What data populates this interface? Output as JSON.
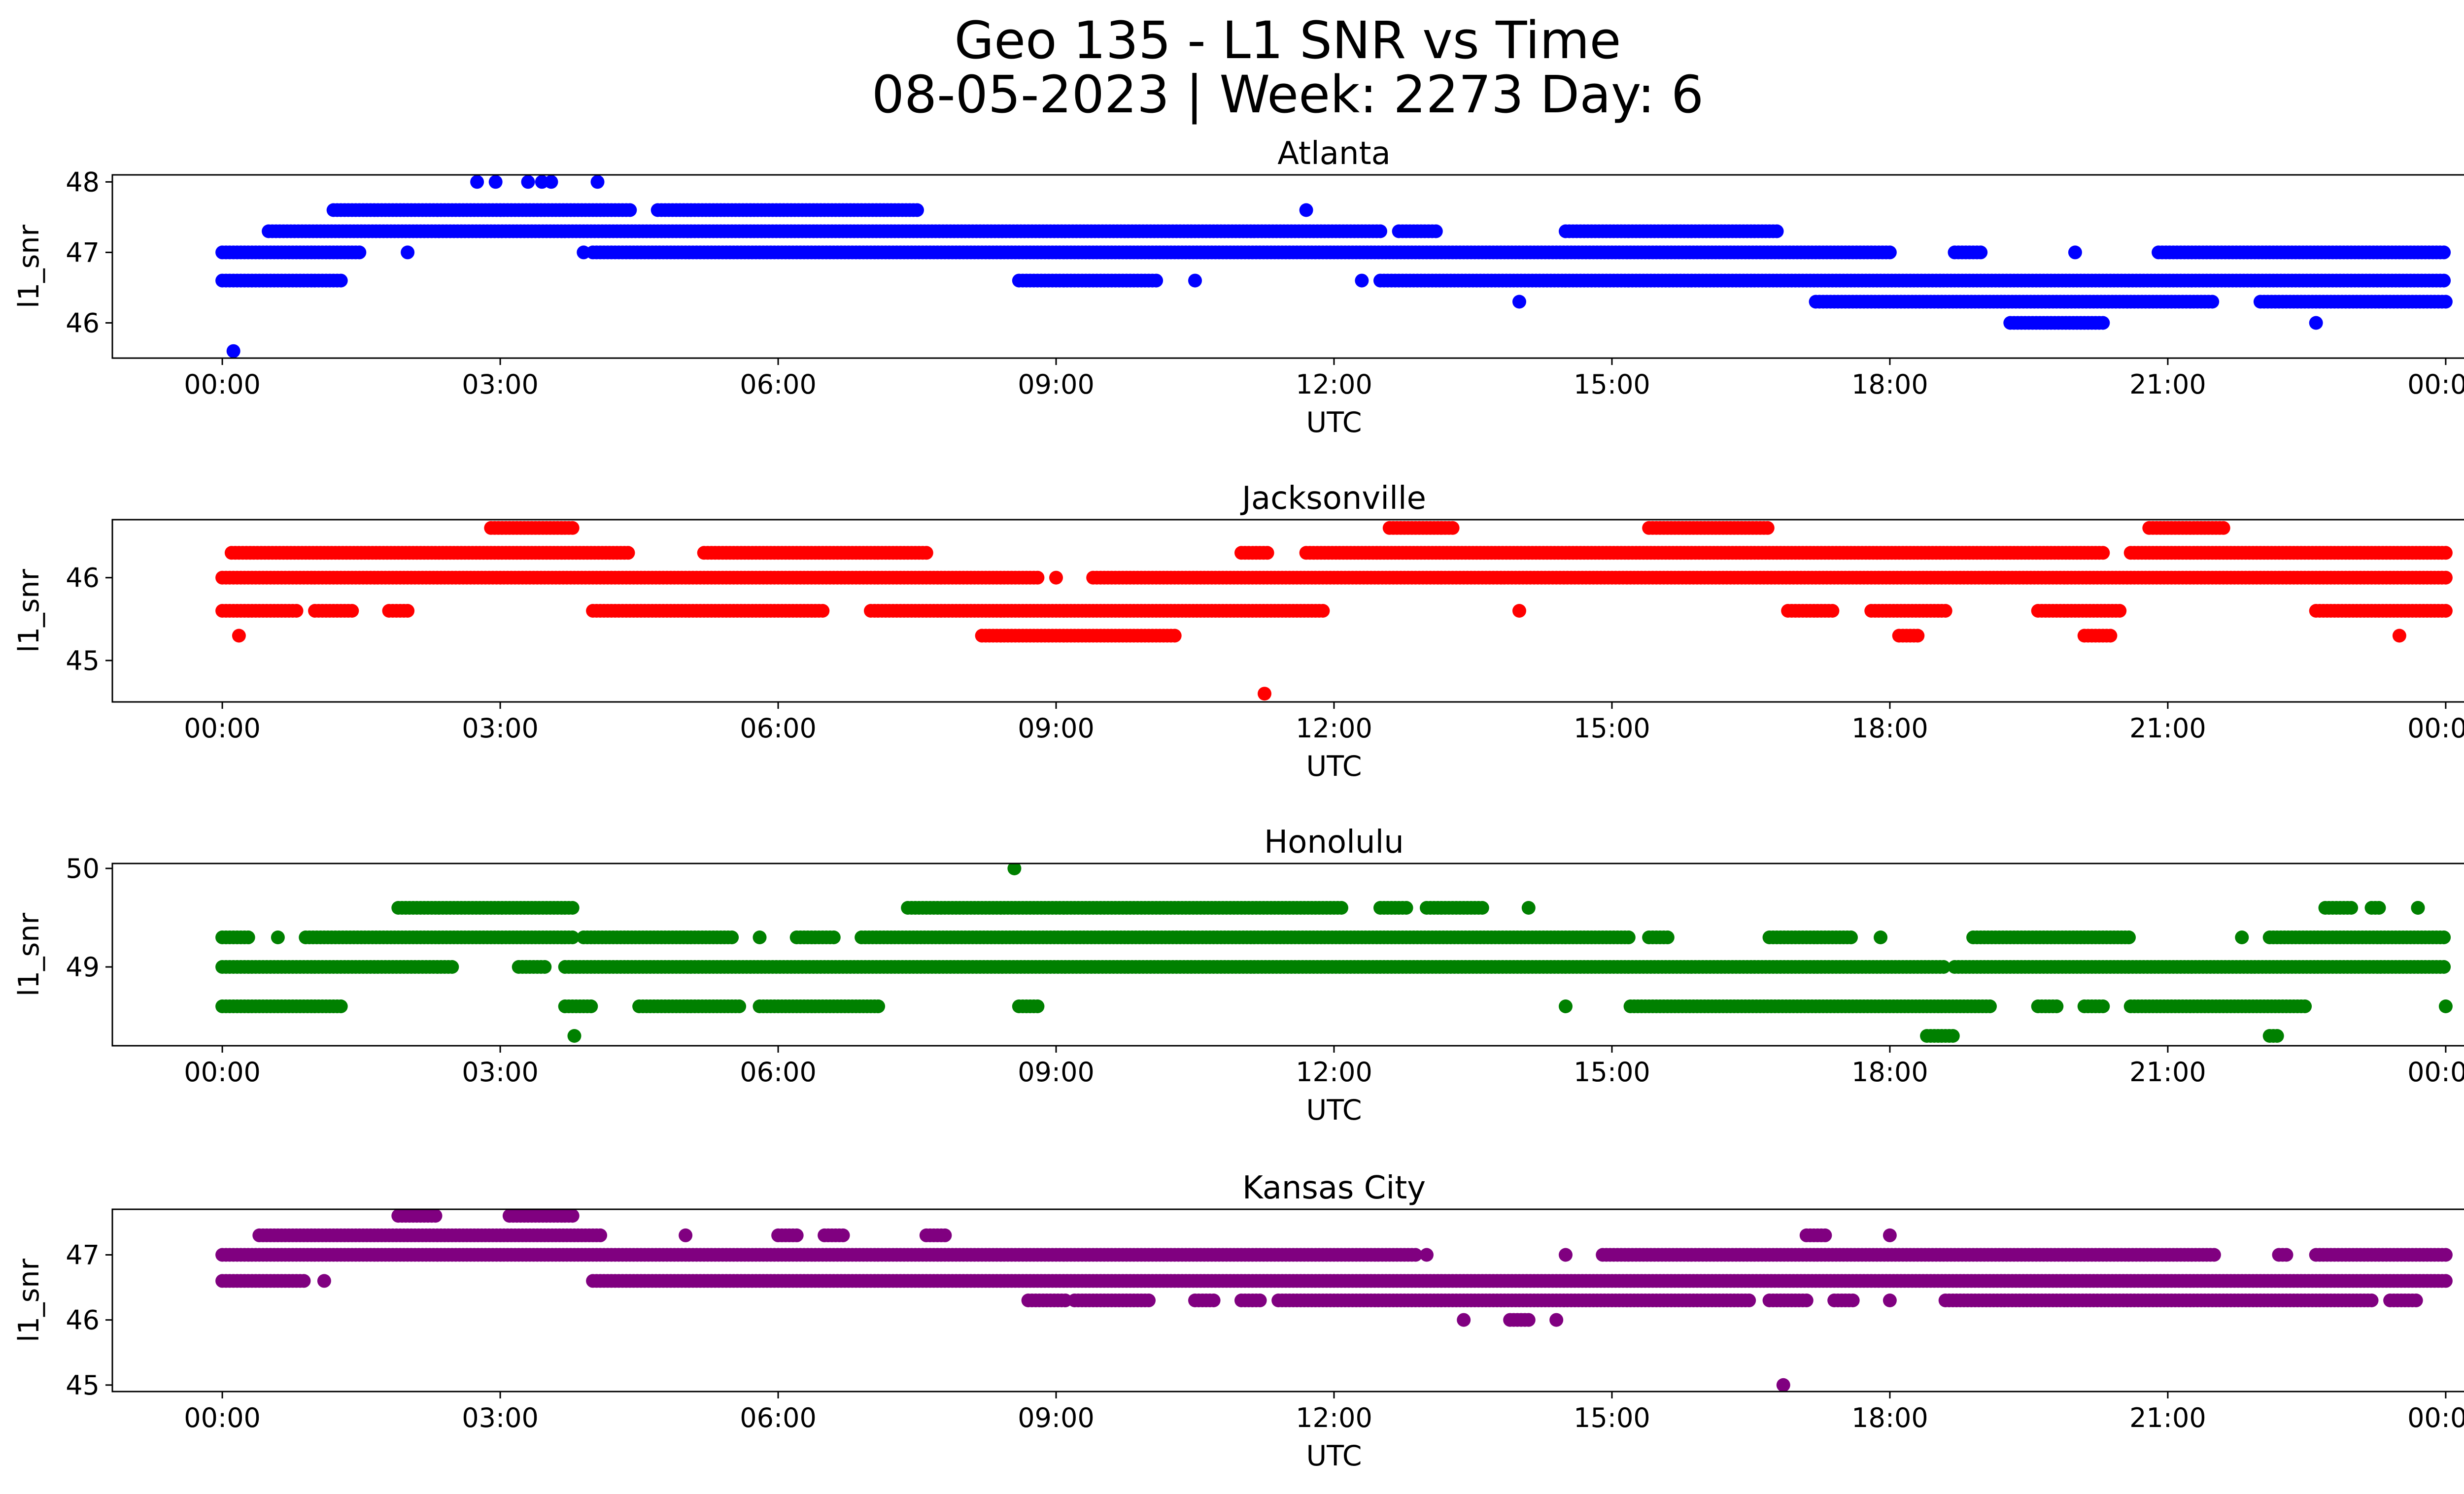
{
  "figure": {
    "title_line1": "Geo 135 - L1 SNR vs Time",
    "title_line2": "08-05-2023 | Week: 2273 Day: 6"
  },
  "chart_data": [
    {
      "type": "scatter",
      "title": "Atlanta",
      "xlabel": "UTC",
      "ylabel": "l1_snr",
      "color": "#0000ff",
      "x_range_hours": [
        0,
        24
      ],
      "x_ticks": [
        "00:00",
        "03:00",
        "06:00",
        "09:00",
        "12:00",
        "15:00",
        "18:00",
        "21:00",
        "00:00"
      ],
      "ylim": [
        45.5,
        48.1
      ],
      "y_ticks": [
        46,
        47,
        48
      ],
      "bands": [
        {
          "y": 47.6,
          "segments": [
            [
              1.2,
              4.4
            ],
            [
              4.7,
              7.5
            ],
            [
              11.7,
              11.7
            ]
          ]
        },
        {
          "y": 47.3,
          "segments": [
            [
              0.5,
              12.5
            ],
            [
              12.7,
              13.1
            ],
            [
              14.5,
              16.8
            ]
          ]
        },
        {
          "y": 47.0,
          "segments": [
            [
              0.0,
              1.5
            ],
            [
              2.0,
              2.0
            ],
            [
              4.0,
              18.0
            ],
            [
              18.7,
              19.0
            ],
            [
              20.0,
              20.0
            ],
            [
              20.9,
              24.0
            ]
          ]
        },
        {
          "y": 46.6,
          "segments": [
            [
              0.0,
              1.3
            ],
            [
              8.6,
              10.1
            ],
            [
              10.5,
              10.5
            ],
            [
              12.3,
              12.3
            ],
            [
              12.5,
              24.0
            ]
          ]
        },
        {
          "y": 46.3,
          "segments": [
            [
              14.0,
              14.0
            ],
            [
              17.2,
              21.5
            ],
            [
              22.0,
              24.0
            ]
          ]
        },
        {
          "y": 46.0,
          "segments": [
            [
              19.3,
              20.3
            ],
            [
              22.6,
              22.6
            ]
          ]
        }
      ],
      "points": [
        {
          "x": 2.75,
          "y": 48.0
        },
        {
          "x": 2.95,
          "y": 48.0
        },
        {
          "x": 3.3,
          "y": 48.0
        },
        {
          "x": 3.45,
          "y": 48.0
        },
        {
          "x": 3.55,
          "y": 48.0
        },
        {
          "x": 4.05,
          "y": 48.0
        },
        {
          "x": 0.12,
          "y": 45.6
        },
        {
          "x": 3.9,
          "y": 47.0
        }
      ]
    },
    {
      "type": "scatter",
      "title": "Jacksonville",
      "xlabel": "UTC",
      "ylabel": "l1_snr",
      "color": "#ff0000",
      "x_range_hours": [
        0,
        24
      ],
      "x_ticks": [
        "00:00",
        "03:00",
        "06:00",
        "09:00",
        "12:00",
        "15:00",
        "18:00",
        "21:00",
        "00:00"
      ],
      "ylim": [
        44.5,
        46.7
      ],
      "y_ticks": [
        45,
        46
      ],
      "bands": [
        {
          "y": 46.6,
          "segments": [
            [
              2.9,
              3.8
            ],
            [
              12.6,
              13.3
            ],
            [
              15.4,
              16.7
            ],
            [
              20.8,
              21.6
            ]
          ]
        },
        {
          "y": 46.3,
          "segments": [
            [
              0.1,
              4.4
            ],
            [
              5.2,
              7.6
            ],
            [
              11.0,
              11.3
            ],
            [
              11.7,
              20.3
            ],
            [
              20.6,
              24.0
            ]
          ]
        },
        {
          "y": 46.0,
          "segments": [
            [
              0.0,
              8.8
            ],
            [
              9.0,
              9.0
            ],
            [
              9.4,
              24.0
            ]
          ]
        },
        {
          "y": 45.6,
          "segments": [
            [
              0.0,
              0.8
            ],
            [
              1.0,
              1.4
            ],
            [
              1.8,
              2.0
            ],
            [
              4.0,
              6.5
            ],
            [
              7.0,
              11.9
            ],
            [
              14.0,
              14.0
            ],
            [
              16.9,
              17.4
            ],
            [
              17.8,
              18.6
            ],
            [
              19.6,
              20.5
            ],
            [
              22.6,
              24.0
            ]
          ]
        },
        {
          "y": 45.3,
          "segments": [
            [
              8.2,
              10.3
            ],
            [
              18.1,
              18.3
            ],
            [
              20.1,
              20.4
            ],
            [
              23.5,
              23.5
            ]
          ]
        }
      ],
      "points": [
        {
          "x": 0.18,
          "y": 45.3
        },
        {
          "x": 11.25,
          "y": 44.6
        }
      ]
    },
    {
      "type": "scatter",
      "title": "Honolulu",
      "xlabel": "UTC",
      "ylabel": "l1_snr",
      "color": "#008000",
      "x_range_hours": [
        0,
        24
      ],
      "x_ticks": [
        "00:00",
        "03:00",
        "06:00",
        "09:00",
        "12:00",
        "15:00",
        "18:00",
        "21:00",
        "00:00"
      ],
      "ylim": [
        48.2,
        50.05
      ],
      "y_ticks": [
        49,
        50
      ],
      "bands": [
        {
          "y": 49.6,
          "segments": [
            [
              1.9,
              3.8
            ],
            [
              7.4,
              12.1
            ],
            [
              12.5,
              12.8
            ],
            [
              13.0,
              13.6
            ],
            [
              14.1,
              14.1
            ],
            [
              22.7,
              23.0
            ],
            [
              23.2,
              23.3
            ],
            [
              23.7,
              23.7
            ]
          ]
        },
        {
          "y": 49.3,
          "segments": [
            [
              0.0,
              0.3
            ],
            [
              0.6,
              0.6
            ],
            [
              0.9,
              3.8
            ],
            [
              3.9,
              5.5
            ],
            [
              5.8,
              5.8
            ],
            [
              6.2,
              6.6
            ],
            [
              6.9,
              15.2
            ],
            [
              15.4,
              15.6
            ],
            [
              16.7,
              17.6
            ],
            [
              17.9,
              17.9
            ],
            [
              18.9,
              20.6
            ],
            [
              21.8,
              21.8
            ],
            [
              22.1,
              24.0
            ]
          ]
        },
        {
          "y": 49.0,
          "segments": [
            [
              0.0,
              2.5
            ],
            [
              3.2,
              3.5
            ],
            [
              3.7,
              18.6
            ],
            [
              18.7,
              24.0
            ]
          ]
        },
        {
          "y": 48.6,
          "segments": [
            [
              0.0,
              1.3
            ],
            [
              3.7,
              4.0
            ],
            [
              4.5,
              5.6
            ],
            [
              5.8,
              7.1
            ],
            [
              8.6,
              8.8
            ],
            [
              14.5,
              14.5
            ],
            [
              15.2,
              19.1
            ],
            [
              19.6,
              19.8
            ],
            [
              20.1,
              20.3
            ],
            [
              20.6,
              22.5
            ],
            [
              24.0,
              24.0
            ]
          ]
        },
        {
          "y": 48.3,
          "segments": [
            [
              3.8,
              3.8
            ],
            [
              18.4,
              18.7
            ],
            [
              22.1,
              22.2
            ]
          ]
        }
      ],
      "points": [
        {
          "x": 8.55,
          "y": 50.0
        },
        {
          "x": 23.7,
          "y": 49.6
        }
      ]
    },
    {
      "type": "scatter",
      "title": "Kansas City",
      "xlabel": "UTC",
      "ylabel": "l1_snr",
      "color": "#800080",
      "x_range_hours": [
        0,
        24
      ],
      "x_ticks": [
        "00:00",
        "03:00",
        "06:00",
        "09:00",
        "12:00",
        "15:00",
        "18:00",
        "21:00",
        "00:00"
      ],
      "ylim": [
        44.9,
        47.7
      ],
      "y_ticks": [
        45,
        46,
        47
      ],
      "bands": [
        {
          "y": 47.6,
          "segments": [
            [
              1.9,
              2.3
            ],
            [
              3.1,
              3.8
            ]
          ]
        },
        {
          "y": 47.3,
          "segments": [
            [
              0.4,
              4.1
            ],
            [
              5.0,
              5.0
            ],
            [
              6.0,
              6.2
            ],
            [
              6.5,
              6.7
            ],
            [
              7.6,
              7.8
            ],
            [
              17.1,
              17.3
            ],
            [
              18.0,
              18.0
            ]
          ]
        },
        {
          "y": 47.0,
          "segments": [
            [
              0.0,
              12.9
            ],
            [
              13.0,
              13.0
            ],
            [
              14.5,
              14.5
            ],
            [
              14.9,
              21.5
            ],
            [
              22.2,
              22.3
            ],
            [
              22.6,
              24.0
            ]
          ]
        },
        {
          "y": 46.6,
          "segments": [
            [
              0.0,
              0.9
            ],
            [
              1.1,
              1.1
            ],
            [
              4.0,
              24.0
            ]
          ]
        },
        {
          "y": 46.3,
          "segments": [
            [
              8.7,
              9.1
            ],
            [
              9.2,
              10.0
            ],
            [
              10.5,
              10.7
            ],
            [
              11.0,
              11.2
            ],
            [
              11.4,
              16.5
            ],
            [
              16.7,
              17.1
            ],
            [
              17.4,
              17.6
            ],
            [
              18.0,
              18.0
            ],
            [
              18.6,
              23.2
            ],
            [
              23.4,
              23.7
            ]
          ]
        },
        {
          "y": 46.0,
          "segments": [
            [
              13.4,
              13.4
            ],
            [
              13.9,
              14.1
            ],
            [
              14.4,
              14.4
            ]
          ]
        }
      ],
      "points": [
        {
          "x": 16.85,
          "y": 45.0
        }
      ]
    }
  ]
}
